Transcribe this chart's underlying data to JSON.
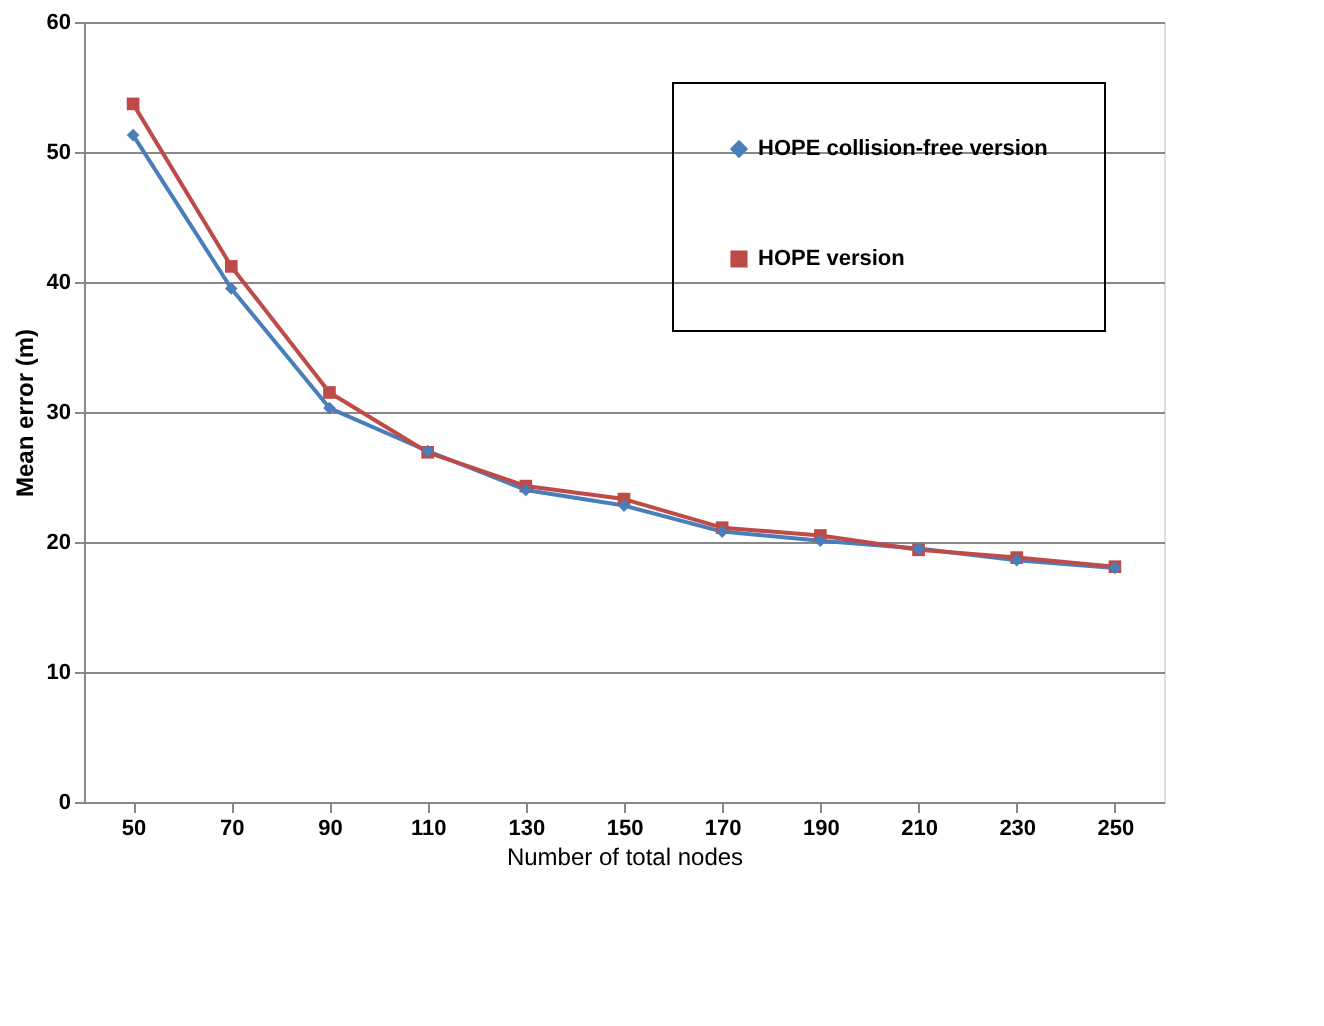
{
  "chart_data": {
    "type": "line",
    "xlabel": "Number of total nodes",
    "ylabel": "Mean error (m)",
    "categories": [
      "50",
      "70",
      "90",
      "110",
      "130",
      "150",
      "170",
      "190",
      "210",
      "230",
      "250"
    ],
    "series": [
      {
        "name": "HOPE collision-free version",
        "color": "#4a7ebb",
        "marker": "diamond",
        "values": [
          51.3,
          39.5,
          30.3,
          27.0,
          24.0,
          22.8,
          20.8,
          20.1,
          19.5,
          18.6,
          18.0
        ]
      },
      {
        "name": "HOPE version",
        "color": "#be4b48",
        "marker": "square",
        "values": [
          53.7,
          41.2,
          31.5,
          26.9,
          24.3,
          23.3,
          21.1,
          20.5,
          19.4,
          18.8,
          18.1
        ]
      }
    ],
    "ylim": [
      0,
      60
    ],
    "yticks": [
      0,
      10,
      20,
      30,
      40,
      50,
      60
    ],
    "grid": "y",
    "legend": "top right",
    "line_style": "solid"
  }
}
